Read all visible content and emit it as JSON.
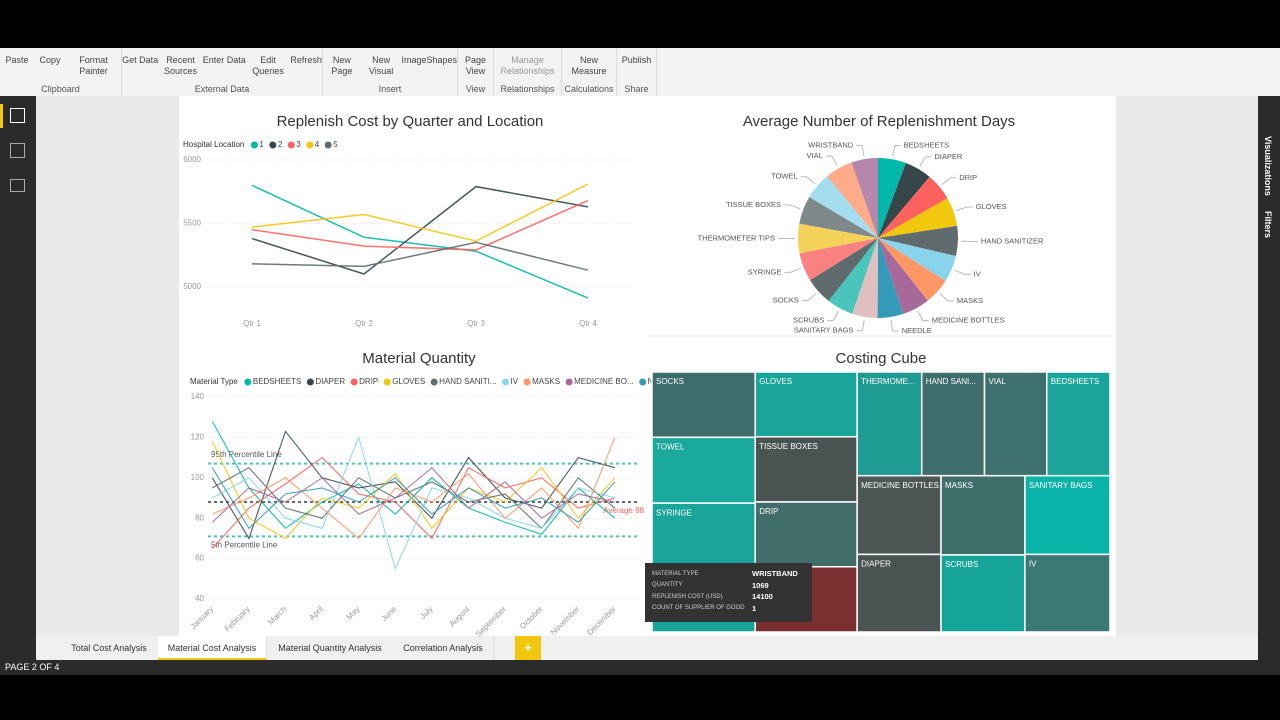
{
  "ribbon": {
    "groups": [
      {
        "name": "Clipboard",
        "buttons": [
          "Paste",
          "Copy",
          "Format Painter"
        ]
      },
      {
        "name": "External Data",
        "buttons": [
          "Get Data",
          "Recent Sources",
          "Enter Data",
          "Edit Queries",
          "Refresh"
        ]
      },
      {
        "name": "Insert",
        "buttons": [
          "New Page",
          "New Visual",
          "Image",
          "Shapes"
        ]
      },
      {
        "name": "View",
        "buttons": [
          "Page View"
        ]
      },
      {
        "name": "Relationships",
        "buttons": [
          "Manage Relationships"
        ]
      },
      {
        "name": "Calculations",
        "buttons": [
          "New Measure"
        ]
      },
      {
        "name": "Share",
        "buttons": [
          "Publish"
        ]
      }
    ]
  },
  "side_panel": [
    "Visualizations",
    "Filters"
  ],
  "tabs": {
    "items": [
      "Total Cost Analysis",
      "Material Cost Analysis",
      "Material Quantity Analysis",
      "Correlation Analysis"
    ],
    "active": 1,
    "add": "+"
  },
  "status": "PAGE 2 OF 4",
  "tooltip": {
    "rows": [
      [
        "MATERIAL TYPE",
        "WRISTBAND"
      ],
      [
        "QUANTITY",
        1069
      ],
      [
        "REPLENISH COST (USD)",
        14100
      ],
      [
        "COUNT OF SUPPLIER OF GOOD",
        1
      ]
    ]
  },
  "chart_data": [
    {
      "type": "line",
      "title": "Replenish Cost by Quarter and Location",
      "legend_title": "Hospital Location",
      "categories": [
        "Qtr 1",
        "Qtr 2",
        "Qtr 3",
        "Qtr 4"
      ],
      "series": [
        {
          "name": "1",
          "color": "#01b8aa",
          "values": [
            5800,
            5390,
            5280,
            4910
          ]
        },
        {
          "name": "2",
          "color": "#374649",
          "values": [
            5380,
            5100,
            5790,
            5630
          ]
        },
        {
          "name": "3",
          "color": "#fd625e",
          "values": [
            5450,
            5320,
            5290,
            5680
          ]
        },
        {
          "name": "4",
          "color": "#f2c80f",
          "values": [
            5470,
            5570,
            5360,
            5810
          ]
        },
        {
          "name": "5",
          "color": "#5f6b6d",
          "values": [
            5180,
            5160,
            5350,
            5130
          ]
        }
      ],
      "ylim": [
        4800,
        6000
      ],
      "yticks": [
        5000,
        5500,
        6000
      ],
      "grid": true
    },
    {
      "type": "pie",
      "title": "Average Number of Replenishment Days",
      "categories": [
        "BEDSHEETS",
        "DIAPER",
        "DRIP",
        "GLOVES",
        "HAND SANITIZER",
        "IV",
        "MASKS",
        "MEDICINE BOTTLES",
        "NEEDLE",
        "SANITARY BAGS",
        "SCRUBS",
        "SOCKS",
        "SYRINGE",
        "THERMOMETER TIPS",
        "TISSUE BOXES",
        "TOWEL",
        "VIAL",
        "WRISTBAND"
      ],
      "values": [
        6.1,
        5.9,
        6.0,
        6.3,
        6.5,
        5.8,
        5.7,
        6.0,
        5.6,
        5.5,
        5.8,
        6.0,
        6.2,
        6.4,
        6.1,
        5.9,
        6.0,
        5.8
      ],
      "colors": [
        "#01b8aa",
        "#374649",
        "#fd625e",
        "#f2c80f",
        "#5f6b6d",
        "#8ad4eb",
        "#fe9666",
        "#a66999",
        "#3599b8",
        "#dfbfbf",
        "#4ac5bb",
        "#5f6b6d",
        "#fb8281",
        "#f4d25a",
        "#7f898a",
        "#a4ddee",
        "#fdab89",
        "#b687ac"
      ]
    },
    {
      "type": "line",
      "title": "Material Quantity",
      "legend_title": "Material Type",
      "categories": [
        "January",
        "February",
        "March",
        "April",
        "May",
        "June",
        "July",
        "August",
        "September",
        "October",
        "November",
        "December"
      ],
      "series": [
        {
          "name": "BEDSHEETS",
          "color": "#01b8aa",
          "values": [
            128,
            95,
            75,
            88,
            97,
            82,
            100,
            85,
            78,
            72,
            95,
            80
          ]
        },
        {
          "name": "DIAPER",
          "color": "#374649",
          "values": [
            100,
            70,
            123,
            100,
            95,
            98,
            80,
            110,
            90,
            85,
            110,
            105
          ]
        },
        {
          "name": "DRIP",
          "color": "#fd625e",
          "values": [
            65,
            85,
            97,
            110,
            92,
            88,
            70,
            105,
            95,
            100,
            85,
            90
          ]
        },
        {
          "name": "GLOVES",
          "color": "#f2c80f",
          "values": [
            118,
            80,
            70,
            90,
            85,
            102,
            75,
            95,
            88,
            105,
            80,
            100
          ]
        },
        {
          "name": "HAND SANITI...",
          "color": "#5f6b6d",
          "values": [
            95,
            105,
            85,
            80,
            100,
            90,
            98,
            88,
            92,
            75,
            100,
            85
          ]
        },
        {
          "name": "IV",
          "color": "#8ad4eb",
          "values": [
            90,
            100,
            80,
            75,
            120,
            55,
            95,
            90,
            80,
            75,
            95,
            90
          ]
        },
        {
          "name": "MASKS",
          "color": "#fe9666",
          "values": [
            82,
            90,
            100,
            85,
            70,
            95,
            88,
            102,
            80,
            95,
            75,
            120
          ]
        },
        {
          "name": "MEDICINE BO...",
          "color": "#a66999",
          "values": [
            78,
            95,
            88,
            100,
            82,
            90,
            105,
            85,
            98,
            80,
            92,
            88
          ]
        },
        {
          "name": "NEEDLE",
          "color": "#3599b8",
          "values": [
            105,
            75,
            92,
            95,
            88,
            100,
            82,
            95,
            85,
            90,
            78,
            98
          ]
        }
      ],
      "reference_lines": [
        {
          "label": "95th Percentile Line",
          "value": 107,
          "color": "#4ac5bb"
        },
        {
          "label": "5th Percentile Line",
          "value": 71,
          "color": "#4ac5bb"
        },
        {
          "label": "Average 88",
          "value": 88,
          "color": "#5f6b6d",
          "label_color": "#fd625e"
        }
      ],
      "ylim": [
        40,
        140
      ],
      "yticks": [
        40,
        60,
        80,
        100,
        120,
        140
      ],
      "grid": true
    },
    {
      "type": "treemap",
      "title": "Costing Cube",
      "categories": [
        "SOCKS",
        "TOWEL",
        "SYRINGE",
        null,
        "GLOVES",
        "TISSUE BOXES",
        "DRIP",
        null,
        "THERMOME...",
        "HAND SANI...",
        "VIAL",
        "BEDSHEETS",
        "MEDICINE BOTTLES",
        "DIAPER",
        "MASKS",
        "SCRUBS",
        "SANITARY BAGS",
        "IV"
      ],
      "values": [
        14300,
        14400,
        14200,
        14000,
        14000,
        14100,
        14000,
        14100,
        14200,
        13800,
        13700,
        13900,
        14000,
        13800,
        14100,
        13700,
        14200,
        14000
      ],
      "colors": [
        "#3e6e6c",
        "#1ba89d",
        "#1aa59a",
        "#1aa59a",
        "#1aa59a",
        "#4a5453",
        "#416d6a",
        "#7b3030",
        "#1e9b92",
        "#3f6e6c",
        "#3e716d",
        "#1aa59a",
        "#4b5655",
        "#4a5453",
        "#3e6f6b",
        "#16a399",
        "#09b3a8",
        "#3b7a74"
      ]
    }
  ]
}
